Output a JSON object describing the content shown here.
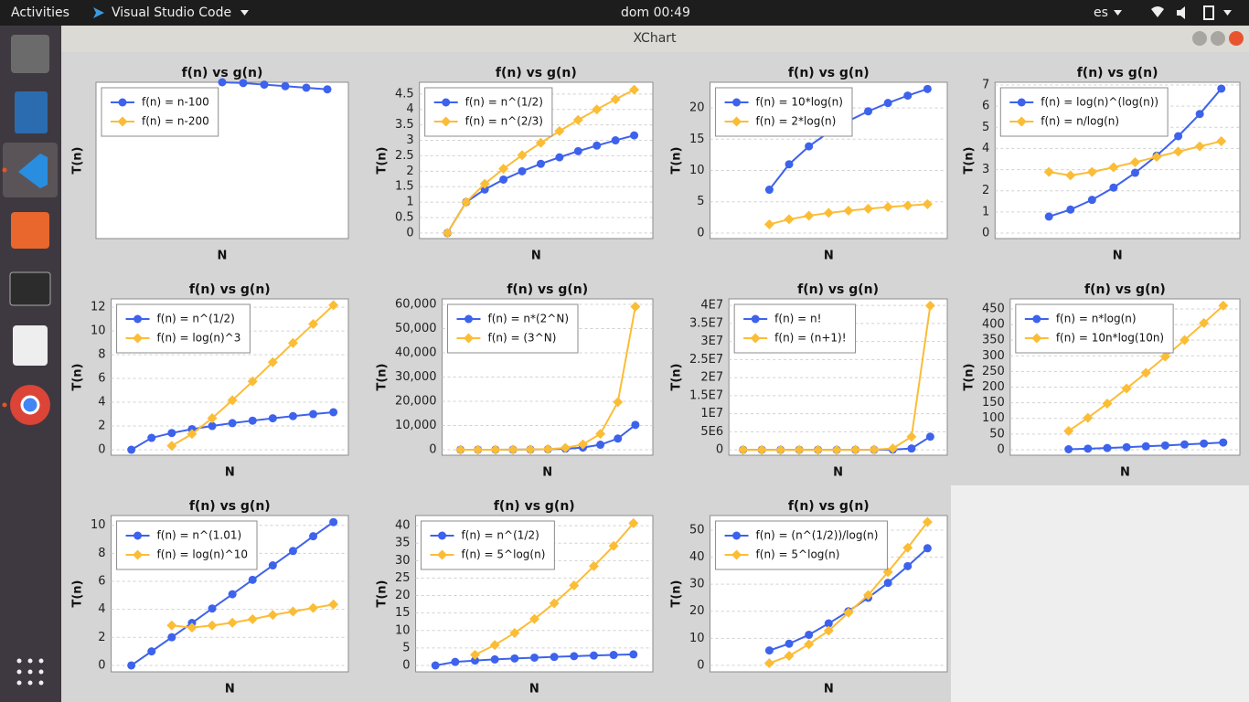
{
  "topbar": {
    "activities": "Activities",
    "app": "Visual Studio Code",
    "clock": "dom 00:49",
    "lang": "es"
  },
  "window": {
    "title": "XChart"
  },
  "chart_data": [
    {
      "type": "line",
      "title": "f(n) vs g(n)",
      "x_label": "N",
      "y_label": "T(n)",
      "x": [
        5,
        6,
        7,
        8,
        9,
        10
      ],
      "xlim": [
        -1,
        11
      ],
      "ylim": [
        0,
        1
      ],
      "yticks": [],
      "grid": true,
      "legend": "top-left",
      "series": [
        {
          "name": "f(n) = n-100",
          "color": "#3d62ec",
          "marker": "circle",
          "values": [
            1,
            0.995,
            0.985,
            0.975,
            0.965,
            0.955
          ]
        },
        {
          "name": "f(n) = n-200",
          "color": "#fbbd36",
          "marker": "diamond",
          "values": [
            null,
            null,
            null,
            null,
            null,
            null
          ]
        }
      ]
    },
    {
      "type": "line",
      "title": "f(n) vs g(n)",
      "x_label": "N",
      "y_label": "T(n)",
      "x": [
        0,
        1,
        2,
        3,
        4,
        5,
        6,
        7,
        8,
        9,
        10
      ],
      "xlim": [
        -1.5,
        11
      ],
      "ylim": [
        -0.18,
        4.88
      ],
      "yticks": [
        0,
        0.5,
        1,
        1.5,
        2,
        2.5,
        3,
        3.5,
        4,
        4.5
      ],
      "grid": true,
      "legend": "top-left",
      "series": [
        {
          "name": "f(n) = n^(1/2)",
          "color": "#3d62ec",
          "marker": "circle",
          "values": [
            0,
            1,
            1.41,
            1.73,
            2,
            2.24,
            2.45,
            2.65,
            2.83,
            3,
            3.16
          ]
        },
        {
          "name": "f(n) = n^(2/3)",
          "color": "#fbbd36",
          "marker": "diamond",
          "values": [
            0,
            1,
            1.59,
            2.08,
            2.52,
            2.92,
            3.3,
            3.66,
            4,
            4.33,
            4.64
          ]
        }
      ]
    },
    {
      "type": "line",
      "title": "f(n) vs g(n)",
      "x_label": "N",
      "y_label": "T(n)",
      "x": [
        2,
        3,
        4,
        5,
        6,
        7,
        8,
        9,
        10
      ],
      "xlim": [
        -1,
        11
      ],
      "ylim": [
        -0.88,
        24.1
      ],
      "yticks": [
        0,
        5,
        10,
        15,
        20
      ],
      "grid": true,
      "legend": "top-left",
      "series": [
        {
          "name": "f(n) = 10*log(n)",
          "color": "#3d62ec",
          "marker": "circle",
          "values": [
            6.93,
            10.99,
            13.86,
            16.09,
            17.92,
            19.46,
            20.79,
            21.97,
            23.03
          ]
        },
        {
          "name": "f(n) = 2*log(n)",
          "color": "#fbbd36",
          "marker": "diamond",
          "values": [
            1.39,
            2.2,
            2.77,
            3.22,
            3.58,
            3.89,
            4.16,
            4.39,
            4.61
          ]
        }
      ]
    },
    {
      "type": "line",
      "title": "f(n) vs g(n)",
      "x_label": "N",
      "y_label": "T(n)",
      "x": [
        2,
        3,
        4,
        5,
        6,
        7,
        8,
        9,
        10
      ],
      "xlim": [
        -0.5,
        10.86
      ],
      "ylim": [
        -0.26,
        7.13
      ],
      "yticks": [
        0,
        1,
        2,
        3,
        4,
        5,
        6,
        7
      ],
      "grid": true,
      "legend": "top-left",
      "series": [
        {
          "name": "f(n) = log(n)^(log(n))",
          "color": "#3d62ec",
          "marker": "circle",
          "values": [
            0.78,
            1.11,
            1.57,
            2.15,
            2.85,
            3.66,
            4.58,
            5.63,
            6.83
          ]
        },
        {
          "name": "f(n) =  n/log(n)",
          "color": "#fbbd36",
          "marker": "diamond",
          "values": [
            2.89,
            2.73,
            2.89,
            3.11,
            3.35,
            3.6,
            3.85,
            4.1,
            4.34
          ]
        }
      ]
    },
    {
      "type": "line",
      "title": "f(n) vs g(n)",
      "x_label": "N",
      "y_label": "T(n)",
      "x": [
        0,
        1,
        2,
        3,
        4,
        5,
        6,
        7,
        8,
        9,
        10
      ],
      "xlim": [
        -1,
        10.74
      ],
      "ylim": [
        -0.46,
        12.7
      ],
      "yticks": [
        0,
        2,
        4,
        6,
        8,
        10,
        12
      ],
      "grid": true,
      "legend": "top-left",
      "series": [
        {
          "name": "f(n) = n^(1/2)",
          "color": "#3d62ec",
          "marker": "circle",
          "values": [
            0,
            1,
            1.41,
            1.73,
            2,
            2.24,
            2.45,
            2.65,
            2.83,
            3,
            3.16
          ]
        },
        {
          "name": "f(n) = log(n)^3",
          "color": "#fbbd36",
          "marker": "diamond",
          "values": [
            null,
            null,
            0.33,
            1.33,
            2.66,
            4.17,
            5.75,
            7.37,
            8.99,
            10.58,
            12.17
          ]
        }
      ]
    },
    {
      "type": "line",
      "title": "f(n) vs g(n)",
      "x_label": "N",
      "y_label": "T(n)",
      "x": [
        0,
        1,
        2,
        3,
        4,
        5,
        6,
        7,
        8,
        9,
        10
      ],
      "xlim": [
        -1.05,
        11
      ],
      "ylim": [
        -2278,
        62278
      ],
      "yticks": [
        0,
        {
          "value": 10000,
          "label": "10,000"
        },
        {
          "value": 20000,
          "label": "20,000"
        },
        {
          "value": 30000,
          "label": "30,000"
        },
        {
          "value": 40000,
          "label": "40,000"
        },
        {
          "value": 50000,
          "label": "50,000"
        },
        {
          "value": 60000,
          "label": "60,000"
        }
      ],
      "grid": true,
      "legend": "top-left",
      "series": [
        {
          "name": "f(n) = n*(2^N)",
          "color": "#3d62ec",
          "marker": "circle",
          "values": [
            0,
            2,
            8,
            24,
            64,
            160,
            384,
            896,
            2048,
            4608,
            10240
          ]
        },
        {
          "name": "f(n) = (3^N)",
          "color": "#fbbd36",
          "marker": "diamond",
          "values": [
            1,
            3,
            9,
            27,
            81,
            243,
            729,
            2187,
            6561,
            19683,
            59049
          ]
        }
      ]
    },
    {
      "type": "line",
      "title": "f(n) vs g(n)",
      "x_label": "N",
      "y_label": "T(n)",
      "x": [
        0,
        1,
        2,
        3,
        4,
        5,
        6,
        7,
        8,
        9,
        10
      ],
      "xlim": [
        -0.76,
        10.91
      ],
      "ylim": [
        -1500000,
        41800000
      ],
      "yticks": [
        0,
        {
          "value": 5000000,
          "label": "5E6"
        },
        {
          "value": 10000000,
          "label": "1E7"
        },
        {
          "value": 15000000,
          "label": "1.5E7"
        },
        {
          "value": 20000000,
          "label": "2E7"
        },
        {
          "value": 25000000,
          "label": "2.5E7"
        },
        {
          "value": 30000000,
          "label": "3E7"
        },
        {
          "value": 35000000,
          "label": "3.5E7"
        },
        {
          "value": 40000000,
          "label": "4E7"
        }
      ],
      "grid": true,
      "legend": "top-left",
      "series": [
        {
          "name": "f(n) = n!",
          "color": "#3d62ec",
          "marker": "circle",
          "values": [
            1,
            1,
            2,
            6,
            24,
            120,
            720,
            5040,
            40320,
            362880,
            3628800
          ]
        },
        {
          "name": "f(n) = (n+1)!",
          "color": "#fbbd36",
          "marker": "diamond",
          "values": [
            1,
            2,
            6,
            24,
            120,
            720,
            5040,
            40320,
            362880,
            3628800,
            39916800
          ]
        }
      ]
    },
    {
      "type": "line",
      "title": "f(n) vs g(n)",
      "x_label": "N",
      "y_label": "T(n)",
      "x": [
        2,
        3,
        4,
        5,
        6,
        7,
        8,
        9,
        10
      ],
      "xlim": [
        -1.02,
        10.86
      ],
      "ylim": [
        -17.6,
        482
      ],
      "yticks": [
        0,
        50,
        100,
        150,
        200,
        250,
        300,
        350,
        400,
        450
      ],
      "grid": true,
      "legend": "top-left",
      "series": [
        {
          "name": "f(n) = n*log(n)",
          "color": "#3d62ec",
          "marker": "circle",
          "values": [
            1.39,
            3.3,
            5.55,
            8.05,
            10.75,
            13.62,
            16.64,
            19.78,
            23.03
          ]
        },
        {
          "name": "f(n) = 10n*log(10n)",
          "color": "#fbbd36",
          "marker": "diamond",
          "values": [
            59.9,
            102,
            147.6,
            195.6,
            245.7,
            297.4,
            350.6,
            405,
            460.5
          ]
        }
      ]
    },
    {
      "type": "line",
      "title": "f(n) vs g(n)",
      "x_label": "N",
      "y_label": "T(n)",
      "x": [
        0,
        1,
        2,
        3,
        4,
        5,
        6,
        7,
        8,
        9,
        10
      ],
      "xlim": [
        -1,
        10.74
      ],
      "ylim": [
        -0.46,
        10.7
      ],
      "yticks": [
        0,
        2,
        4,
        6,
        8,
        10
      ],
      "grid": true,
      "legend": "top-left",
      "series": [
        {
          "name": "f(n) = n^(1.01)",
          "color": "#3d62ec",
          "marker": "circle",
          "values": [
            0,
            1,
            2.01,
            3.03,
            4.06,
            5.08,
            6.11,
            7.14,
            8.17,
            9.22,
            10.23
          ]
        },
        {
          "name": "f(n) = log(n)^10",
          "color": "#fbbd36",
          "marker": "diamond",
          "values": [
            null,
            null,
            2.85,
            2.7,
            2.85,
            3.05,
            3.3,
            3.6,
            3.85,
            4.1,
            4.35
          ]
        }
      ]
    },
    {
      "type": "line",
      "title": "f(n) vs g(n)",
      "x_label": "N",
      "y_label": "T(n)",
      "x": [
        0,
        1,
        2,
        3,
        4,
        5,
        6,
        7,
        8,
        9,
        10
      ],
      "xlim": [
        -1,
        10.98
      ],
      "ylim": [
        -1.83,
        42.9
      ],
      "yticks": [
        0,
        5,
        10,
        15,
        20,
        25,
        30,
        35,
        40
      ],
      "grid": true,
      "legend": "top-left",
      "series": [
        {
          "name": "f(n) = n^(1/2)",
          "color": "#3d62ec",
          "marker": "circle",
          "values": [
            0,
            1,
            1.41,
            1.73,
            2,
            2.24,
            2.45,
            2.65,
            2.83,
            3,
            3.16
          ]
        },
        {
          "name": "f(n) = 5^log(n)",
          "color": "#fbbd36",
          "marker": "diamond",
          "values": [
            null,
            null,
            3.05,
            5.86,
            9.3,
            13.3,
            17.8,
            22.9,
            28.4,
            34.2,
            40.7
          ]
        }
      ]
    },
    {
      "type": "line",
      "title": "f(n) vs g(n)",
      "x_label": "N",
      "y_label": "T(n)",
      "x": [
        2,
        3,
        4,
        5,
        6,
        7,
        8,
        9,
        10
      ],
      "xlim": [
        -1,
        11
      ],
      "ylim": [
        -2.4,
        55.4
      ],
      "yticks": [
        0,
        10,
        20,
        30,
        40,
        50
      ],
      "grid": true,
      "legend": "top-left",
      "series": [
        {
          "name": "f(n) = (n^(1/2))/log(n)",
          "color": "#3d62ec",
          "marker": "circle",
          "values": [
            5.5,
            8,
            11.3,
            15.5,
            20,
            25,
            30.5,
            36.7,
            43.3
          ]
        },
        {
          "name": "f(n) = 5^log(n)",
          "color": "#fbbd36",
          "marker": "diamond",
          "values": [
            0.8,
            3.5,
            7.8,
            12.8,
            19.5,
            26,
            34.5,
            43.5,
            53
          ]
        }
      ]
    }
  ]
}
